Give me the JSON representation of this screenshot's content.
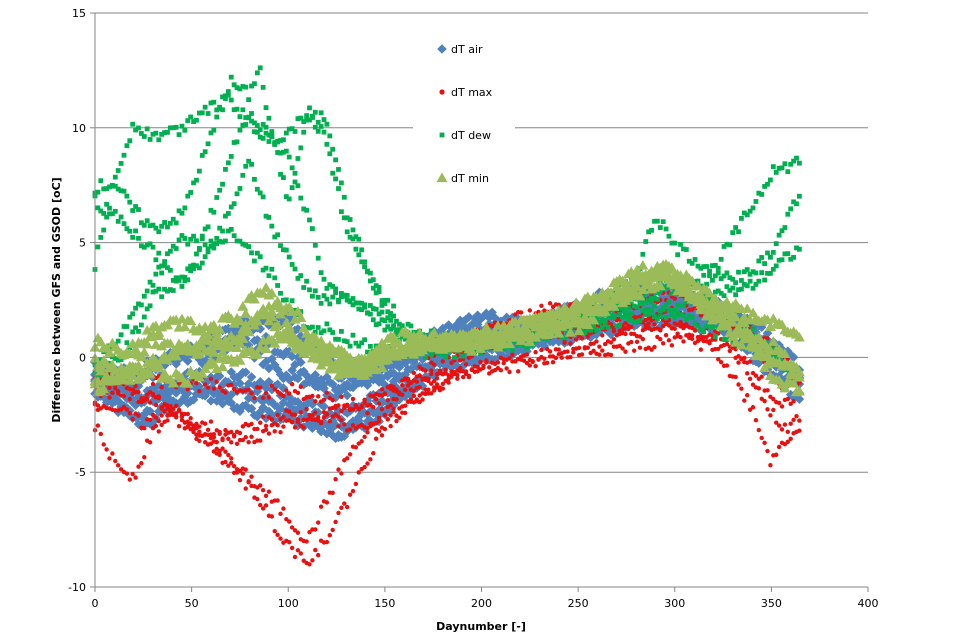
{
  "chart_data": {
    "type": "scatter",
    "xlabel": "Daynumber [-]",
    "ylabel": "Difference between GFS and GSOD [oC]",
    "xlim": [
      0,
      400
    ],
    "ylim": [
      -10,
      15
    ],
    "xticks": [
      0,
      50,
      100,
      150,
      200,
      250,
      300,
      350,
      400
    ],
    "yticks": [
      -10,
      -5,
      0,
      5,
      10,
      15
    ],
    "grid": "horizontal",
    "legend_position": "top-center",
    "series": [
      {
        "name": "dT air",
        "marker": "diamond",
        "color": "#4F81BD",
        "curves": [
          {
            "x": [
              0,
              25,
              50,
              75,
              100,
              125,
              150,
              175,
              200,
              225,
              250,
              275,
              300,
              325,
              350,
              365
            ],
            "y": [
              -0.8,
              -0.4,
              0.4,
              1.2,
              0.2,
              -1.8,
              -0.2,
              0.3,
              0.6,
              0.8,
              1.6,
              2.9,
              2.6,
              2.0,
              0.6,
              -0.8
            ]
          },
          {
            "x": [
              0,
              25,
              50,
              75,
              100,
              125,
              150,
              175,
              200,
              225,
              250,
              275,
              300,
              325,
              350,
              365
            ],
            "y": [
              -0.5,
              -1.6,
              -1.2,
              -0.8,
              -1.6,
              -2.6,
              -1.6,
              0.4,
              1.0,
              0.8,
              1.2,
              2.0,
              2.3,
              1.6,
              0.4,
              -1.5
            ]
          },
          {
            "x": [
              0,
              25,
              50,
              75,
              100,
              125,
              150,
              175,
              200,
              225,
              250,
              275,
              300,
              325,
              350,
              365
            ],
            "y": [
              -1.0,
              -1.8,
              -0.8,
              1.4,
              1.6,
              -0.6,
              -1.2,
              0.9,
              1.8,
              1.3,
              2.2,
              3.1,
              2.9,
              2.1,
              0.8,
              -0.5
            ]
          },
          {
            "x": [
              0,
              25,
              50,
              75,
              100,
              125,
              150,
              175,
              200,
              225,
              250,
              275,
              300,
              325,
              350,
              365
            ],
            "y": [
              -1.2,
              -2.4,
              -1.2,
              -2.2,
              -2.6,
              -3.2,
              -2.1,
              -0.2,
              0.3,
              0.8,
              1.0,
              1.6,
              1.6,
              1.2,
              -0.6,
              -1.8
            ]
          },
          {
            "x": [
              0,
              25,
              50,
              75,
              100,
              125,
              150,
              175,
              200,
              225,
              250,
              275,
              300,
              325,
              350,
              365
            ],
            "y": [
              -0.3,
              -0.8,
              0.1,
              0.6,
              -0.8,
              -1.2,
              -0.6,
              0.8,
              1.2,
              1.3,
              1.7,
              2.3,
              2.1,
              1.8,
              0.2,
              -0.9
            ]
          },
          {
            "x": [
              0,
              25,
              50,
              75,
              100,
              125,
              150,
              175,
              200,
              225,
              250,
              275,
              300,
              325,
              350,
              365
            ],
            "y": [
              -1.6,
              -2.8,
              -1.8,
              -1.4,
              -2.2,
              -3.4,
              -2.4,
              -0.6,
              0.0,
              0.5,
              0.9,
              1.4,
              1.9,
              1.6,
              -0.2,
              -1.2
            ]
          }
        ]
      },
      {
        "name": "dT max",
        "marker": "circle",
        "color": "#E81010",
        "curves": [
          {
            "x": [
              0,
              10,
              20,
              30,
              40,
              55,
              70,
              85,
              95,
              105,
              112,
              120,
              130,
              140,
              150,
              165,
              180,
              200,
              225,
              250,
              275,
              300,
              320,
              340,
              350,
              355,
              365
            ],
            "y": [
              -3.0,
              -4.6,
              -5.2,
              -3.2,
              -2.6,
              -3.2,
              -4.6,
              -6.2,
              -7.6,
              -8.6,
              -8.8,
              -7.8,
              -6.4,
              -4.6,
              -3.0,
              -1.8,
              -1.0,
              -0.5,
              -0.3,
              0.2,
              0.4,
              0.8,
              0.5,
              -2.2,
              -4.6,
              -3.8,
              -3.0
            ]
          },
          {
            "x": [
              0,
              15,
              25,
              40,
              55,
              70,
              85,
              100,
              110,
              120,
              130,
              140,
              155,
              170,
              190,
              210,
              230,
              250,
              270,
              290,
              310,
              330,
              345,
              355,
              365
            ],
            "y": [
              -1.8,
              -2.4,
              -2.9,
              -2.2,
              -3.6,
              -4.6,
              -5.6,
              -7.0,
              -8.0,
              -6.2,
              -4.4,
              -3.4,
              -2.4,
              -1.6,
              -0.6,
              -0.2,
              0.1,
              0.6,
              0.8,
              1.4,
              1.2,
              0.3,
              -1.6,
              -3.2,
              -2.6
            ]
          },
          {
            "x": [
              0,
              15,
              30,
              45,
              60,
              75,
              90,
              110,
              130,
              150,
              170,
              190,
              210,
              230,
              250,
              270,
              290,
              310,
              330,
              345,
              355,
              365
            ],
            "y": [
              -2.2,
              -1.2,
              -1.8,
              -2.6,
              -3.0,
              -3.8,
              -3.2,
              -2.8,
              -2.2,
              -1.6,
              -0.8,
              0.1,
              0.7,
              0.9,
              1.2,
              1.4,
              1.8,
              2.2,
              1.4,
              0.2,
              -1.4,
              -1.0
            ]
          },
          {
            "x": [
              0,
              20,
              40,
              60,
              80,
              100,
              120,
              140,
              160,
              180,
              200,
              220,
              240,
              260,
              280,
              300,
              320,
              340,
              355,
              365
            ],
            "y": [
              -1.2,
              -1.6,
              -2.2,
              -3.6,
              -3.0,
              -2.4,
              -2.6,
              -3.2,
              -1.4,
              -0.8,
              0.2,
              1.2,
              1.0,
              1.2,
              1.6,
              1.4,
              1.0,
              -0.4,
              -2.2,
              -1.4
            ]
          },
          {
            "x": [
              0,
              20,
              40,
              60,
              80,
              100,
              120,
              140,
              160,
              180,
              200,
              220,
              240,
              260,
              280,
              300,
              320,
              340,
              355,
              365
            ],
            "y": [
              -1.0,
              -0.6,
              -1.2,
              -1.2,
              -1.6,
              -1.4,
              -1.8,
              -2.2,
              -1.2,
              0.3,
              1.0,
              1.8,
              2.2,
              2.0,
              2.4,
              2.6,
              2.2,
              1.0,
              0.2,
              -0.6
            ]
          }
        ]
      },
      {
        "name": "dT dew",
        "marker": "square",
        "color": "#00B050",
        "curves": [
          {
            "x": [
              0,
              10,
              20,
              30,
              45,
              55,
              70,
              80,
              90,
              100,
              110,
              120,
              130,
              145,
              160,
              180,
              200,
              220,
              240,
              260,
              280,
              290,
              300,
              315,
              330,
              345,
              355,
              365
            ],
            "y": [
              4.0,
              7.6,
              10.2,
              9.6,
              10.0,
              10.8,
              11.2,
              10.2,
              9.4,
              9.8,
              10.6,
              10.4,
              6.4,
              3.0,
              1.4,
              0.8,
              0.6,
              0.8,
              1.2,
              2.0,
              2.8,
              3.2,
              3.0,
              2.4,
              1.8,
              0.8,
              -0.2,
              -0.6
            ]
          },
          {
            "x": [
              0,
              10,
              20,
              30,
              45,
              60,
              70,
              80,
              85,
              90,
              100,
              110,
              120,
              130,
              145,
              160,
              180,
              200,
              220,
              240,
              260,
              280,
              290,
              300,
              320,
              340,
              350,
              365
            ],
            "y": [
              7.4,
              7.6,
              6.4,
              5.6,
              6.2,
              9.6,
              12.0,
              11.4,
              12.8,
              10.2,
              6.8,
              10.8,
              9.4,
              5.6,
              3.0,
              0.8,
              0.4,
              0.6,
              1.0,
              1.6,
              2.2,
              3.6,
              6.2,
              4.8,
              3.8,
              6.6,
              8.0,
              8.6
            ]
          },
          {
            "x": [
              0,
              15,
              30,
              45,
              60,
              70,
              80,
              90,
              100,
              110,
              120,
              130,
              145,
              160,
              180,
              200,
              220,
              240,
              260,
              280,
              300,
              320,
              340,
              350,
              355,
              365
            ],
            "y": [
              6.8,
              5.8,
              4.6,
              3.0,
              6.2,
              8.8,
              10.6,
              9.8,
              8.6,
              6.2,
              3.0,
              2.6,
              2.0,
              0.8,
              0.4,
              0.6,
              0.9,
              1.2,
              1.6,
              2.2,
              3.2,
              3.4,
              3.6,
              4.6,
              5.4,
              7.2
            ]
          },
          {
            "x": [
              0,
              15,
              30,
              45,
              60,
              70,
              80,
              90,
              100,
              110,
              120,
              130,
              145,
              160,
              180,
              200,
              220,
              240,
              260,
              280,
              300,
              320,
              340,
              355,
              365
            ],
            "y": [
              -0.8,
              0.2,
              2.6,
              3.4,
              4.6,
              6.4,
              8.6,
              6.0,
              4.4,
              3.0,
              2.4,
              2.8,
              1.6,
              1.0,
              0.6,
              0.8,
              1.0,
              1.4,
              1.8,
              2.4,
              2.2,
              2.6,
              3.2,
              4.2,
              4.8
            ]
          },
          {
            "x": [
              0,
              15,
              30,
              45,
              60,
              70,
              80,
              90,
              100,
              110,
              120,
              130,
              145,
              160,
              180,
              200,
              220,
              240,
              260,
              280,
              300,
              320,
              340,
              355,
              365
            ],
            "y": [
              -0.4,
              1.2,
              3.4,
              5.2,
              4.8,
              5.4,
              4.6,
              3.8,
              2.4,
              1.4,
              1.2,
              0.8,
              0.4,
              0.2,
              0.2,
              0.4,
              0.6,
              1.0,
              1.4,
              1.8,
              1.8,
              1.2,
              0.6,
              -0.4,
              -0.8
            ]
          }
        ]
      },
      {
        "name": "dT min",
        "marker": "triangle",
        "color": "#9BBB59",
        "curves": [
          {
            "x": [
              0,
              15,
              30,
              45,
              60,
              75,
              85,
              95,
              105,
              115,
              125,
              140,
              155,
              170,
              190,
              210,
              230,
              250,
              270,
              285,
              295,
              305,
              320,
              340,
              355,
              365
            ],
            "y": [
              0.6,
              0.2,
              1.2,
              1.6,
              1.2,
              1.8,
              3.0,
              2.4,
              1.8,
              0.6,
              0.2,
              -0.4,
              0.4,
              0.6,
              0.8,
              1.2,
              1.6,
              2.2,
              3.2,
              3.8,
              3.6,
              3.4,
              2.6,
              1.8,
              1.4,
              1.0
            ]
          },
          {
            "x": [
              0,
              15,
              30,
              45,
              60,
              75,
              85,
              95,
              105,
              115,
              125,
              140,
              155,
              170,
              190,
              210,
              230,
              250,
              270,
              285,
              295,
              305,
              320,
              340,
              355,
              365
            ],
            "y": [
              -0.8,
              -1.0,
              -0.2,
              0.4,
              0.2,
              0.9,
              1.8,
              2.2,
              0.8,
              0.2,
              -0.4,
              -0.8,
              0.2,
              0.6,
              0.6,
              0.8,
              1.2,
              1.8,
              2.6,
              3.0,
              3.4,
              3.0,
              2.2,
              1.0,
              0.2,
              -0.8
            ]
          },
          {
            "x": [
              0,
              15,
              30,
              45,
              60,
              75,
              85,
              95,
              105,
              115,
              125,
              140,
              155,
              170,
              190,
              210,
              230,
              250,
              270,
              285,
              295,
              305,
              320,
              340,
              355,
              365
            ],
            "y": [
              -1.4,
              -0.6,
              0.8,
              0.2,
              1.0,
              0.4,
              2.2,
              1.2,
              0.4,
              0.8,
              0.0,
              -0.2,
              0.8,
              1.0,
              0.4,
              0.6,
              1.0,
              1.4,
              2.4,
              3.4,
              4.0,
              3.2,
              1.6,
              0.4,
              -1.2,
              -1.4
            ]
          },
          {
            "x": [
              0,
              15,
              30,
              45,
              60,
              75,
              85,
              95,
              105,
              115,
              125,
              140,
              155,
              170,
              190,
              210,
              230,
              250,
              270,
              285,
              295,
              305,
              320,
              340,
              355,
              365
            ],
            "y": [
              -0.2,
              -0.8,
              -0.6,
              -1.0,
              -0.4,
              0.0,
              0.4,
              1.0,
              0.6,
              0.0,
              -0.6,
              -0.2,
              0.2,
              0.4,
              0.8,
              1.0,
              1.6,
              2.0,
              2.8,
              3.6,
              3.8,
              2.8,
              2.0,
              0.8,
              -0.4,
              -0.6
            ]
          }
        ]
      }
    ]
  }
}
